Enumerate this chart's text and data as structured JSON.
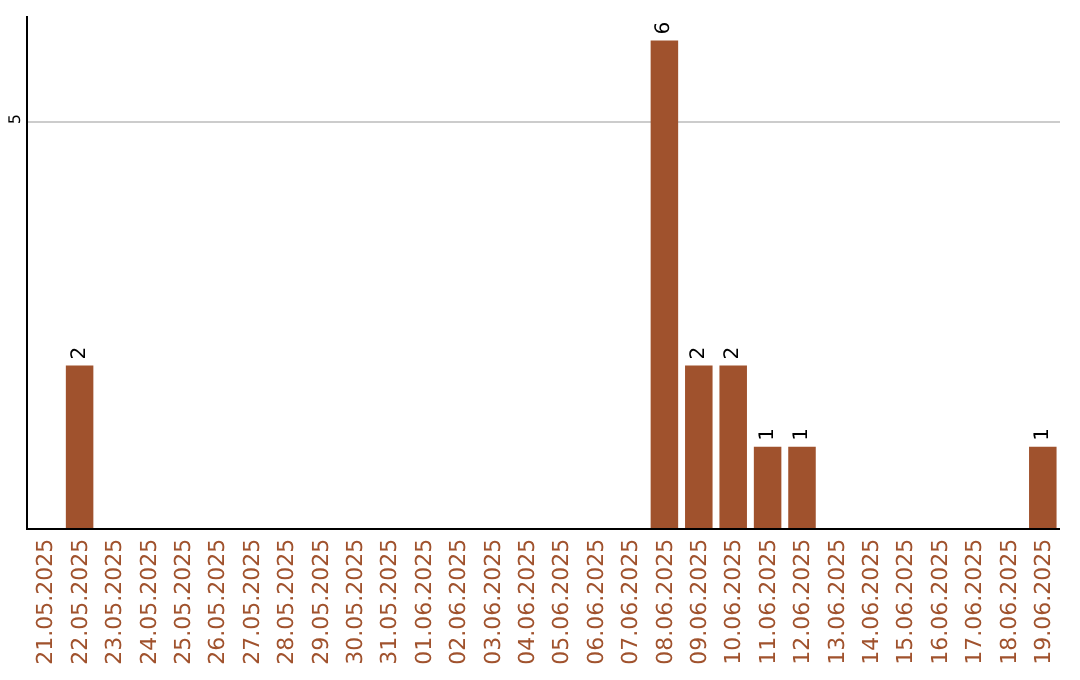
{
  "chart_data": {
    "type": "bar",
    "categories": [
      "21.05.2025",
      "22.05.2025",
      "23.05.2025",
      "24.05.2025",
      "25.05.2025",
      "26.05.2025",
      "27.05.2025",
      "28.05.2025",
      "29.05.2025",
      "30.05.2025",
      "31.05.2025",
      "01.06.2025",
      "02.06.2025",
      "03.06.2025",
      "04.06.2025",
      "05.06.2025",
      "06.06.2025",
      "07.06.2025",
      "08.06.2025",
      "09.06.2025",
      "10.06.2025",
      "11.06.2025",
      "12.06.2025",
      "13.06.2025",
      "14.06.2025",
      "15.06.2025",
      "16.06.2025",
      "17.06.2025",
      "18.06.2025",
      "19.06.2025"
    ],
    "values": [
      0,
      2,
      0,
      0,
      0,
      0,
      0,
      0,
      0,
      0,
      0,
      0,
      0,
      0,
      0,
      0,
      0,
      0,
      6,
      2,
      2,
      1,
      1,
      0,
      0,
      0,
      0,
      0,
      0,
      1
    ],
    "value_labels": [
      null,
      "2",
      null,
      null,
      null,
      null,
      null,
      null,
      null,
      null,
      null,
      null,
      null,
      null,
      null,
      null,
      null,
      null,
      "6",
      "2",
      "2",
      "1",
      "1",
      null,
      null,
      null,
      null,
      null,
      null,
      "1"
    ],
    "color": "#a0522d",
    "ylim": [
      0,
      6.3
    ],
    "yticks": [
      5
    ],
    "grid": "y",
    "legend": false
  }
}
